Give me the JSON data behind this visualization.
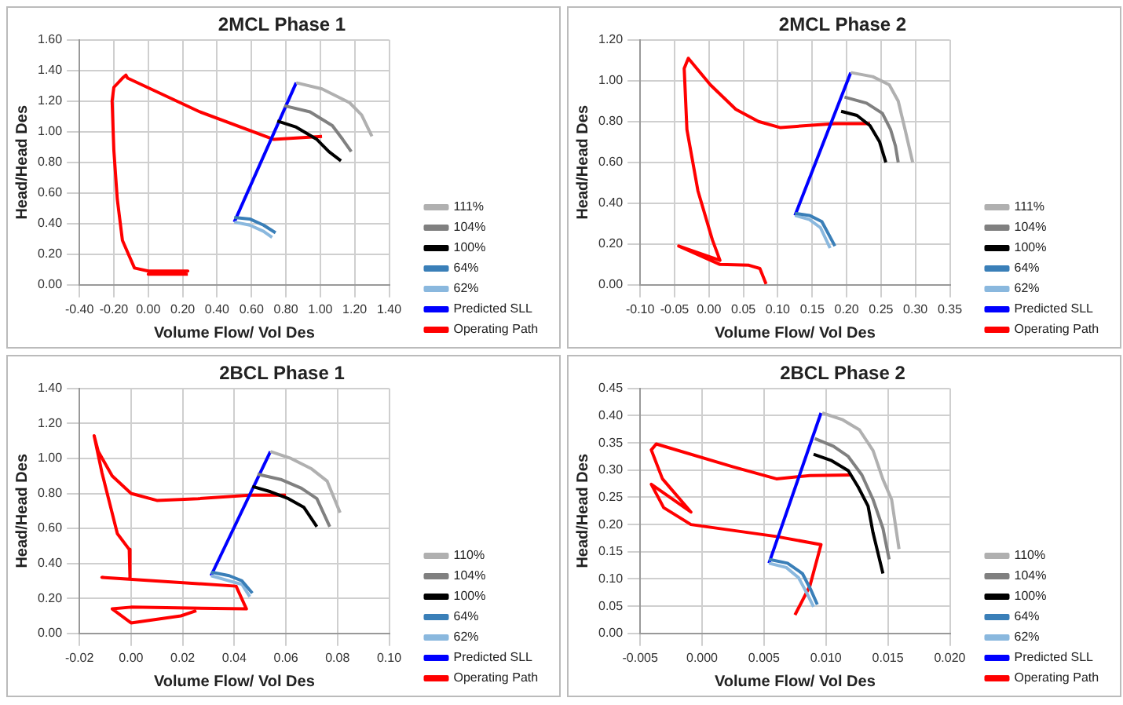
{
  "chart_data": [
    {
      "type": "line",
      "title": "2MCL Phase 1",
      "xlabel": "Volume Flow/ Vol Des",
      "ylabel": "Head/Head Des",
      "xlim": [
        -0.4,
        1.4
      ],
      "ylim": [
        0,
        1.6
      ],
      "xticks": [
        {
          "value": -0.4,
          "label": "-0.40"
        },
        {
          "value": -0.2,
          "label": "-0.20"
        },
        {
          "value": 0,
          "label": "0.00"
        },
        {
          "value": 0.2,
          "label": "0.20"
        },
        {
          "value": 0.4,
          "label": "0.40"
        },
        {
          "value": 0.6,
          "label": "0.60"
        },
        {
          "value": 0.8,
          "label": "0.80"
        },
        {
          "value": 1,
          "label": "1.00"
        },
        {
          "value": 1.2,
          "label": "1.20"
        },
        {
          "value": 1.4,
          "label": "1.40"
        }
      ],
      "yticks": [
        {
          "value": 0,
          "label": "0.00"
        },
        {
          "value": 0.2,
          "label": "0.20"
        },
        {
          "value": 0.4,
          "label": "0.40"
        },
        {
          "value": 0.6,
          "label": "0.60"
        },
        {
          "value": 0.8,
          "label": "0.80"
        },
        {
          "value": 1,
          "label": "1.00"
        },
        {
          "value": 1.2,
          "label": "1.20"
        },
        {
          "value": 1.4,
          "label": "1.40"
        },
        {
          "value": 1.6,
          "label": "1.60"
        }
      ],
      "grid": true,
      "legend": "right",
      "marker": "none",
      "line_style": "solid",
      "series": [
        {
          "name": "111%",
          "color": "#b0b0b0",
          "x": [
            0.86,
            1.01,
            1.17,
            1.24,
            1.3
          ],
          "values": [
            1.32,
            1.28,
            1.19,
            1.11,
            0.97
          ]
        },
        {
          "name": "104%",
          "color": "#808080",
          "x": [
            0.79,
            0.94,
            1.07,
            1.13,
            1.18
          ],
          "values": [
            1.17,
            1.13,
            1.04,
            0.95,
            0.87
          ]
        },
        {
          "name": "100%",
          "color": "#000000",
          "x": [
            0.75,
            0.86,
            0.98,
            1.05,
            1.12
          ],
          "values": [
            1.07,
            1.03,
            0.95,
            0.87,
            0.81
          ]
        },
        {
          "name": "64%",
          "color": "#3a7fb8",
          "x": [
            0.5,
            0.59,
            0.67,
            0.74
          ],
          "values": [
            0.44,
            0.43,
            0.39,
            0.34
          ]
        },
        {
          "name": "62%",
          "color": "#8ab8de",
          "x": [
            0.5,
            0.59,
            0.67,
            0.72
          ],
          "values": [
            0.41,
            0.39,
            0.35,
            0.31
          ]
        },
        {
          "name": "Predicted SLL",
          "color": "#0000ff",
          "x": [
            0.5,
            0.86
          ],
          "values": [
            0.41,
            1.32
          ]
        },
        {
          "name": "Operating Path",
          "color": "#ff0000",
          "x": [
            0.23,
            0.0,
            0.23,
            0.0,
            -0.08,
            -0.15,
            -0.18,
            -0.2,
            -0.21,
            -0.2,
            -0.15,
            -0.13,
            -0.12,
            0.3,
            0.73,
            1.01
          ],
          "values": [
            0.07,
            0.07,
            0.09,
            0.09,
            0.11,
            0.29,
            0.56,
            0.88,
            1.2,
            1.29,
            1.35,
            1.37,
            1.35,
            1.13,
            0.95,
            0.97
          ]
        }
      ]
    },
    {
      "type": "line",
      "title": "2MCL Phase 2",
      "xlabel": "Volume Flow/ Vol Des",
      "ylabel": "Head/Head Des",
      "xlim": [
        -0.1,
        0.35
      ],
      "ylim": [
        0,
        1.2
      ],
      "xticks": [
        {
          "value": -0.1,
          "label": "-0.10"
        },
        {
          "value": -0.05,
          "label": "-0.05"
        },
        {
          "value": 0,
          "label": "0.00"
        },
        {
          "value": 0.05,
          "label": "0.05"
        },
        {
          "value": 0.1,
          "label": "0.10"
        },
        {
          "value": 0.15,
          "label": "0.15"
        },
        {
          "value": 0.2,
          "label": "0.20"
        },
        {
          "value": 0.25,
          "label": "0.25"
        },
        {
          "value": 0.3,
          "label": "0.30"
        },
        {
          "value": 0.35,
          "label": "0.35"
        }
      ],
      "yticks": [
        {
          "value": 0,
          "label": "0.00"
        },
        {
          "value": 0.2,
          "label": "0.20"
        },
        {
          "value": 0.4,
          "label": "0.40"
        },
        {
          "value": 0.6,
          "label": "0.60"
        },
        {
          "value": 0.8,
          "label": "0.80"
        },
        {
          "value": 1,
          "label": "1.00"
        },
        {
          "value": 1.2,
          "label": "1.20"
        }
      ],
      "grid": true,
      "legend": "right",
      "marker": "none",
      "line_style": "solid",
      "series": [
        {
          "name": "111%",
          "color": "#b0b0b0",
          "x": [
            0.206,
            0.238,
            0.262,
            0.275,
            0.285,
            0.296
          ],
          "values": [
            1.04,
            1.02,
            0.98,
            0.9,
            0.76,
            0.6
          ]
        },
        {
          "name": "104%",
          "color": "#808080",
          "x": [
            0.197,
            0.229,
            0.252,
            0.264,
            0.271,
            0.275
          ],
          "values": [
            0.92,
            0.89,
            0.84,
            0.76,
            0.68,
            0.6
          ]
        },
        {
          "name": "100%",
          "color": "#000000",
          "x": [
            0.192,
            0.215,
            0.234,
            0.248,
            0.257
          ],
          "values": [
            0.85,
            0.83,
            0.78,
            0.7,
            0.6
          ]
        },
        {
          "name": "64%",
          "color": "#3a7fb8",
          "x": [
            0.125,
            0.146,
            0.164,
            0.183
          ],
          "values": [
            0.35,
            0.34,
            0.31,
            0.19
          ]
        },
        {
          "name": "62%",
          "color": "#8ab8de",
          "x": [
            0.125,
            0.146,
            0.162,
            0.176
          ],
          "values": [
            0.34,
            0.32,
            0.28,
            0.18
          ]
        },
        {
          "name": "Predicted SLL",
          "color": "#0000ff",
          "x": [
            0.125,
            0.206
          ],
          "values": [
            0.34,
            1.04
          ]
        },
        {
          "name": "Operating Path",
          "color": "#ff0000",
          "x": [
            0.083,
            0.074,
            0.058,
            0.016,
            -0.044,
            0.016,
            0.005,
            -0.016,
            -0.032,
            -0.036,
            -0.03,
            0.002,
            0.039,
            0.072,
            0.104,
            0.141,
            0.183,
            0.234
          ],
          "values": [
            0.004,
            0.08,
            0.096,
            0.1,
            0.19,
            0.12,
            0.22,
            0.46,
            0.76,
            1.06,
            1.11,
            0.98,
            0.86,
            0.8,
            0.77,
            0.78,
            0.79,
            0.79
          ]
        }
      ]
    },
    {
      "type": "line",
      "title": "2BCL Phase 1",
      "xlabel": "Volume Flow/ Vol Des",
      "ylabel": "Head/Head Des",
      "xlim": [
        -0.02,
        0.1
      ],
      "ylim": [
        0,
        1.4
      ],
      "xticks": [
        {
          "value": -0.02,
          "label": "-0.02"
        },
        {
          "value": 0,
          "label": "0.00"
        },
        {
          "value": 0.02,
          "label": "0.02"
        },
        {
          "value": 0.04,
          "label": "0.04"
        },
        {
          "value": 0.06,
          "label": "0.06"
        },
        {
          "value": 0.08,
          "label": "0.08"
        },
        {
          "value": 0.1,
          "label": "0.10"
        }
      ],
      "yticks": [
        {
          "value": 0,
          "label": "0.00"
        },
        {
          "value": 0.2,
          "label": "0.20"
        },
        {
          "value": 0.4,
          "label": "0.40"
        },
        {
          "value": 0.6,
          "label": "0.60"
        },
        {
          "value": 0.8,
          "label": "0.80"
        },
        {
          "value": 1,
          "label": "1.00"
        },
        {
          "value": 1.2,
          "label": "1.20"
        },
        {
          "value": 1.4,
          "label": "1.40"
        }
      ],
      "grid": true,
      "legend": "right",
      "marker": "none",
      "line_style": "solid",
      "series": [
        {
          "name": "110%",
          "color": "#b0b0b0",
          "x": [
            0.054,
            0.062,
            0.07,
            0.076,
            0.081
          ],
          "values": [
            1.04,
            1.0,
            0.94,
            0.87,
            0.69
          ]
        },
        {
          "name": "104%",
          "color": "#808080",
          "x": [
            0.049,
            0.058,
            0.066,
            0.072,
            0.077
          ],
          "values": [
            0.91,
            0.88,
            0.83,
            0.77,
            0.61
          ]
        },
        {
          "name": "100%",
          "color": "#000000",
          "x": [
            0.047,
            0.054,
            0.061,
            0.067,
            0.072
          ],
          "values": [
            0.84,
            0.81,
            0.77,
            0.72,
            0.61
          ]
        },
        {
          "name": "64%",
          "color": "#3a7fb8",
          "x": [
            0.031,
            0.038,
            0.043,
            0.047
          ],
          "values": [
            0.35,
            0.33,
            0.3,
            0.23
          ]
        },
        {
          "name": "62%",
          "color": "#8ab8de",
          "x": [
            0.031,
            0.038,
            0.043,
            0.046
          ],
          "values": [
            0.33,
            0.3,
            0.28,
            0.21
          ]
        },
        {
          "name": "Predicted SLL",
          "color": "#0000ff",
          "x": [
            0.031,
            0.054
          ],
          "values": [
            0.33,
            1.04
          ]
        },
        {
          "name": "Operating Path",
          "color": "#ff0000",
          "x": [
            0.06,
            0.046,
            0.026,
            0.01,
            0,
            -0.0073,
            -0.0127,
            -0.0143,
            -0.0113,
            -0.0053,
            -0.0007,
            -0.0004,
            -0.0113,
            0.0407,
            0.0447,
            0,
            -0.0073,
            0,
            0.0193,
            0.0253
          ],
          "values": [
            0.79,
            0.79,
            0.77,
            0.76,
            0.8,
            0.9,
            1.04,
            1.13,
            0.92,
            0.57,
            0.48,
            0.31,
            0.32,
            0.27,
            0.14,
            0.15,
            0.14,
            0.06,
            0.1,
            0.13
          ]
        }
      ]
    },
    {
      "type": "line",
      "title": "2BCL Phase 2",
      "xlabel": "Volume Flow/ Vol Des",
      "ylabel": "Head/Head Des",
      "xlim": [
        -0.005,
        0.02
      ],
      "ylim": [
        0,
        0.45
      ],
      "xticks": [
        {
          "value": -0.005,
          "label": "-0.005"
        },
        {
          "value": 0,
          "label": "0.000"
        },
        {
          "value": 0.005,
          "label": "0.005"
        },
        {
          "value": 0.01,
          "label": "0.010"
        },
        {
          "value": 0.015,
          "label": "0.015"
        },
        {
          "value": 0.02,
          "label": "0.020"
        }
      ],
      "yticks": [
        {
          "value": 0,
          "label": "0.00"
        },
        {
          "value": 0.05,
          "label": "0.05"
        },
        {
          "value": 0.1,
          "label": "0.10"
        },
        {
          "value": 0.15,
          "label": "0.15"
        },
        {
          "value": 0.2,
          "label": "0.20"
        },
        {
          "value": 0.25,
          "label": "0.25"
        },
        {
          "value": 0.3,
          "label": "0.30"
        },
        {
          "value": 0.35,
          "label": "0.35"
        },
        {
          "value": 0.4,
          "label": "0.40"
        },
        {
          "value": 0.45,
          "label": "0.45"
        }
      ],
      "grid": true,
      "legend": "right",
      "marker": "none",
      "line_style": "solid",
      "series": [
        {
          "name": "110%",
          "color": "#b0b0b0",
          "x": [
            0.0097,
            0.0113,
            0.0127,
            0.0138,
            0.0146,
            0.0153,
            0.0159
          ],
          "values": [
            0.405,
            0.393,
            0.374,
            0.336,
            0.283,
            0.246,
            0.155
          ]
        },
        {
          "name": "104%",
          "color": "#808080",
          "x": [
            0.0091,
            0.0106,
            0.0118,
            0.0129,
            0.0138,
            0.0146,
            0.0151
          ],
          "values": [
            0.358,
            0.344,
            0.325,
            0.291,
            0.246,
            0.193,
            0.136
          ]
        },
        {
          "name": "100%",
          "color": "#000000",
          "x": [
            0.009,
            0.0104,
            0.0118,
            0.0126,
            0.0134,
            0.0138,
            0.0146
          ],
          "values": [
            0.329,
            0.318,
            0.299,
            0.269,
            0.234,
            0.185,
            0.11
          ]
        },
        {
          "name": "64%",
          "color": "#3a7fb8",
          "x": [
            0.0054,
            0.0069,
            0.0081,
            0.0088,
            0.0093
          ],
          "values": [
            0.136,
            0.129,
            0.11,
            0.079,
            0.053
          ]
        },
        {
          "name": "62%",
          "color": "#8ab8de",
          "x": [
            0.0054,
            0.0068,
            0.0078,
            0.0085,
            0.009
          ],
          "values": [
            0.129,
            0.121,
            0.102,
            0.072,
            0.049
          ]
        },
        {
          "name": "Predicted SLL",
          "color": "#0000ff",
          "x": [
            0.0054,
            0.0096
          ],
          "values": [
            0.129,
            0.405
          ]
        },
        {
          "name": "Operating Path",
          "color": "#ff0000",
          "x": [
            0.0121,
            0.0087,
            0.006,
            0.0025,
            -0.0037,
            -0.0041,
            -0.0032,
            -0.0009,
            -0.0041,
            -0.0031,
            -0.0009,
            0.006,
            0.0096,
            0.0087,
            0.0075
          ],
          "values": [
            0.291,
            0.29,
            0.284,
            0.306,
            0.348,
            0.337,
            0.284,
            0.223,
            0.274,
            0.231,
            0.2,
            0.178,
            0.163,
            0.087,
            0.034
          ]
        }
      ]
    }
  ]
}
